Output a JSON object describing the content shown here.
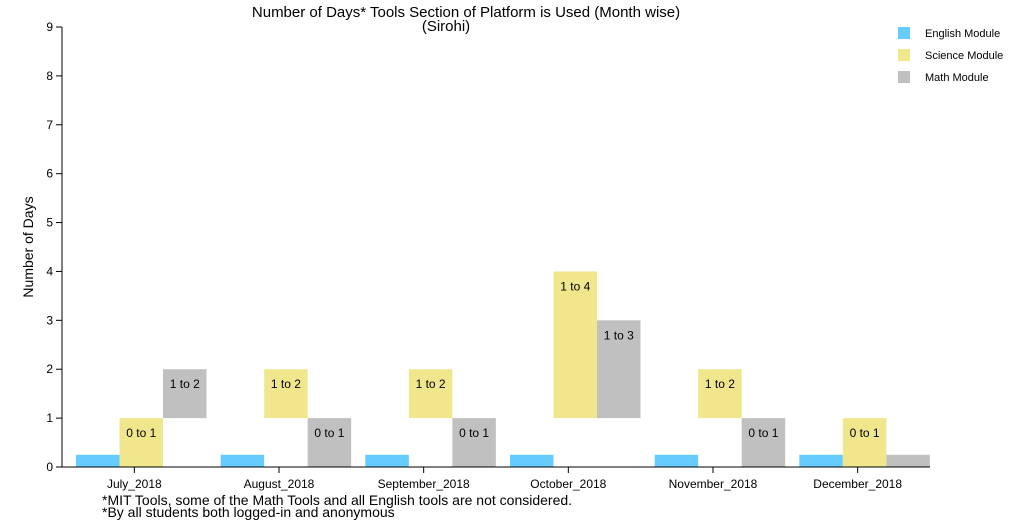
{
  "chart_data": {
    "type": "bar",
    "title": "Number of Days* Tools Section of Platform is Used (Month wise)",
    "subtitle": "(Sirohi)",
    "xlabel": "",
    "ylabel": "Number of Days",
    "ylim": [
      0,
      9
    ],
    "yticks": [
      "0",
      "1",
      "2",
      "3",
      "4",
      "5",
      "6",
      "7",
      "8",
      "9"
    ],
    "categories": [
      "July_2018",
      "August_2018",
      "September_2018",
      "October_2018",
      "November_2018",
      "December_2018"
    ],
    "series": [
      {
        "name": "English Module",
        "color": "#66ccff",
        "ranges": [
          [
            0,
            0.25
          ],
          [
            0,
            0.25
          ],
          [
            0,
            0.25
          ],
          [
            0,
            0.25
          ],
          [
            0,
            0.25
          ],
          [
            0,
            0.25
          ]
        ],
        "labels": [
          "",
          "",
          "",
          "",
          "",
          ""
        ]
      },
      {
        "name": "Science Module",
        "color": "#f0e68c",
        "ranges": [
          [
            0,
            1
          ],
          [
            1,
            2
          ],
          [
            1,
            2
          ],
          [
            1,
            4
          ],
          [
            1,
            2
          ],
          [
            0,
            1
          ]
        ],
        "labels": [
          "0 to 1",
          "1 to 2",
          "1 to 2",
          "1 to 4",
          "1 to 2",
          "0 to 1"
        ]
      },
      {
        "name": "Math Module",
        "color": "#c0c0c0",
        "ranges": [
          [
            1,
            2
          ],
          [
            0,
            1
          ],
          [
            0,
            1
          ],
          [
            1,
            3
          ],
          [
            0,
            1
          ],
          [
            0,
            0.25
          ]
        ],
        "labels": [
          "1 to 2",
          "0 to 1",
          "0 to 1",
          "1 to 3",
          "0 to 1",
          ""
        ]
      }
    ],
    "legend_position": "top-right",
    "grid": false,
    "footnotes": [
      "*MIT Tools, some of the Math Tools and all English tools are not considered.",
      "*By all students both logged-in and anonymous"
    ]
  }
}
